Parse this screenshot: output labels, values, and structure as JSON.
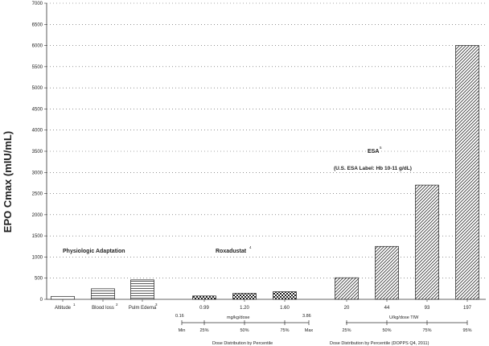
{
  "chart_data": {
    "type": "bar",
    "ylabel": "EPO Cmax (mIU/mL)",
    "ylim": [
      0,
      7000
    ],
    "yticks": [
      0,
      500,
      1000,
      1500,
      2000,
      2500,
      3000,
      3500,
      4000,
      4500,
      5000,
      5500,
      6000,
      6500,
      7000
    ],
    "grid": "dotted horizontal",
    "categories": [
      {
        "label": "Altitude",
        "sup": "1",
        "value": 70,
        "pattern": "none"
      },
      {
        "label": "Blood loss",
        "sup": "2",
        "value": 250,
        "pattern": "horizontal"
      },
      {
        "label": "Pulm Edema",
        "sup": "3",
        "value": 460,
        "pattern": "horizontal"
      },
      {
        "label": "0.99",
        "sup": "",
        "value": 80,
        "pattern": "checker"
      },
      {
        "label": "1.20",
        "sup": "",
        "value": 140,
        "pattern": "checker"
      },
      {
        "label": "1.60",
        "sup": "",
        "value": 180,
        "pattern": "checker"
      },
      {
        "label": "20",
        "sup": "",
        "value": 510,
        "pattern": "diagonal"
      },
      {
        "label": "44",
        "sup": "",
        "value": 1250,
        "pattern": "diagonal"
      },
      {
        "label": "93",
        "sup": "",
        "value": 2700,
        "pattern": "diagonal"
      },
      {
        "label": "197",
        "sup": "",
        "value": 6000,
        "pattern": "diagonal"
      }
    ],
    "annotations": {
      "physiologic": "Physiologic Adaptation",
      "roxadustat": "Roxadustat",
      "roxadustat_sup": "4",
      "esa": "ESA",
      "esa_sup": "5",
      "esa_label": "(U.S. ESA Label: Hb 10-11 g/dL)"
    },
    "roxadustat_axis": {
      "min_value": "0.16",
      "max_value": "3.86",
      "unit": "mg/kg/dose",
      "percentile_labels": [
        "Min",
        "25%",
        "50%",
        "75%",
        "Max"
      ],
      "caption": "Dose Distribution by Percentile"
    },
    "esa_axis": {
      "unit": "U/kg/dose TIW",
      "percentile_labels": [
        "25%",
        "50%",
        "75%",
        "95%"
      ],
      "caption": "Dose Distribution by Percentile (DOPPS Q4, 2011)"
    }
  }
}
